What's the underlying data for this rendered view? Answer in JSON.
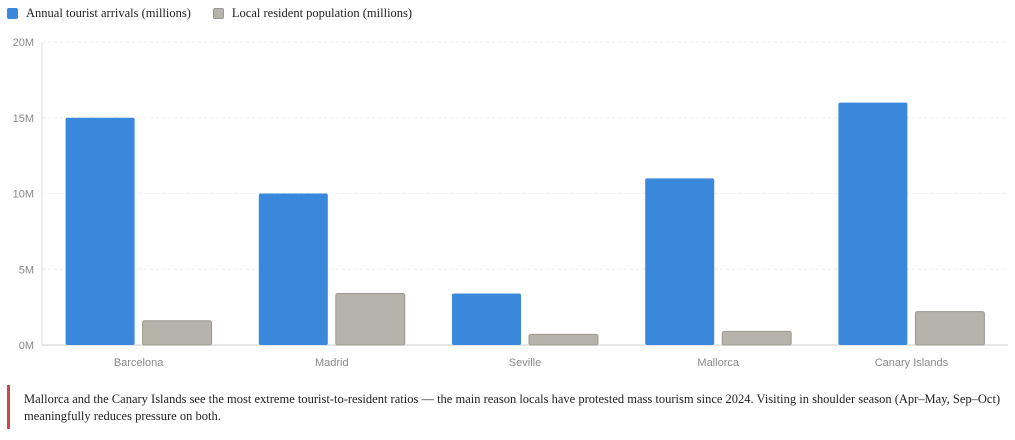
{
  "chart_data": {
    "type": "bar",
    "categories": [
      "Barcelona",
      "Madrid",
      "Seville",
      "Mallorca",
      "Canary Islands"
    ],
    "series": [
      {
        "name": "Annual tourist arrivals (millions)",
        "color": "#3a88dc",
        "values": [
          15,
          10,
          3.4,
          11,
          16
        ]
      },
      {
        "name": "Local resident population (millions)",
        "color": "#b6b3ab",
        "values": [
          1.6,
          3.4,
          0.7,
          0.9,
          2.2
        ]
      }
    ],
    "yticks": [
      "0M",
      "5M",
      "10M",
      "15M",
      "20M"
    ],
    "ylim": [
      0,
      20
    ],
    "grid": true,
    "legend": "top-left"
  },
  "note": "Mallorca and the Canary Islands see the most extreme tourist-to-resident ratios — the main reason locals have protested mass tourism since 2024. Visiting in shoulder season (Apr–May, Sep–Oct) meaningfully reduces pressure on both."
}
